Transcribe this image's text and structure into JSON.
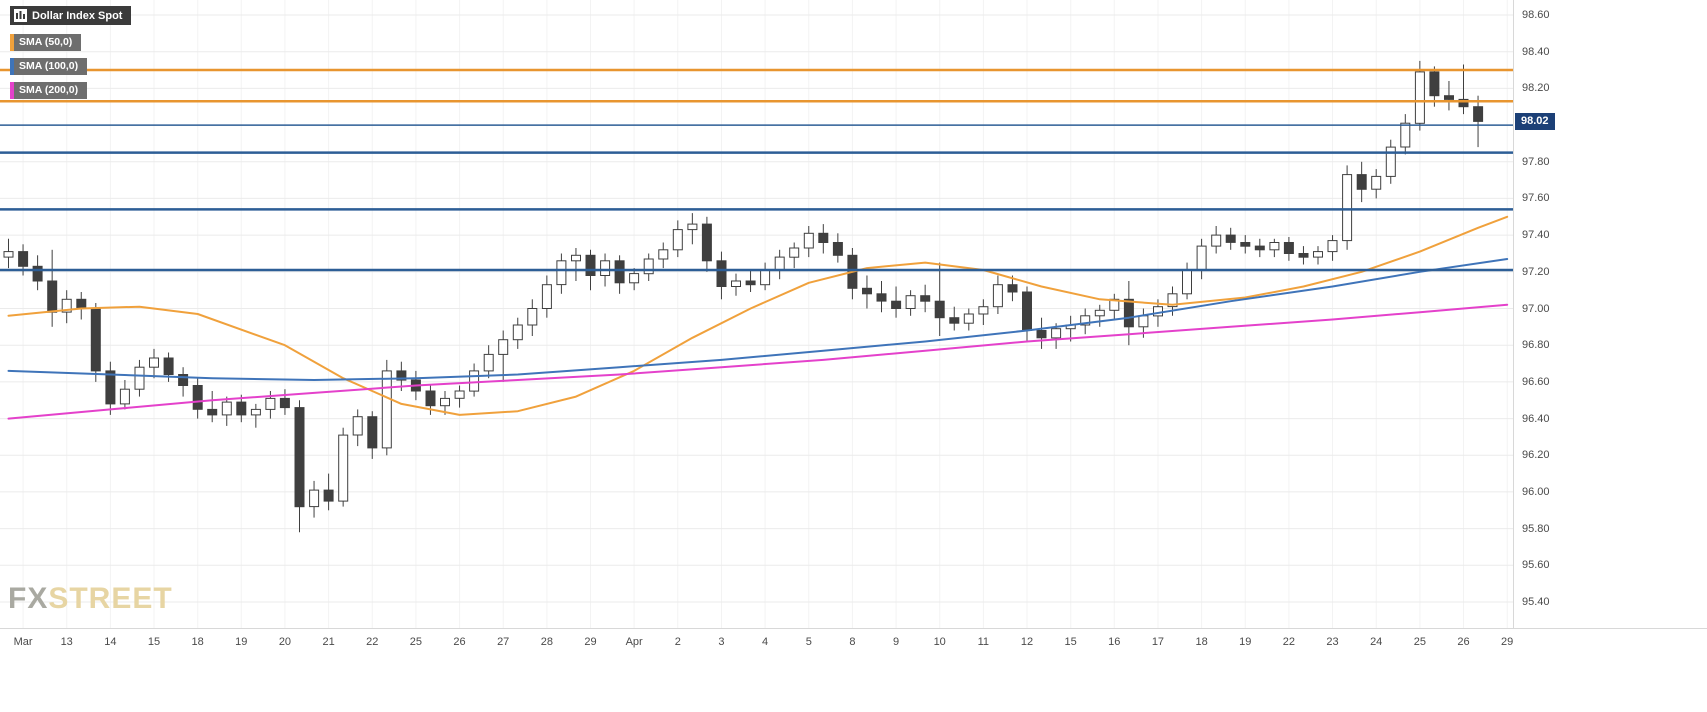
{
  "legend": {
    "symbol": "Dollar Index Spot",
    "indicators": [
      {
        "label": "SMA (50,0)",
        "color": "#f0a13c"
      },
      {
        "label": "SMA (100,0)",
        "color": "#3f74b9"
      },
      {
        "label": "SMA (200,0)",
        "color": "#e441cb"
      }
    ]
  },
  "watermark": {
    "fx": "FX",
    "street": "STREET"
  },
  "price_badge": {
    "value": "98.02",
    "color": "#1c4077"
  },
  "chart_data": {
    "type": "candlestick",
    "title": "Dollar Index Spot",
    "timeframe_hint": "intraday (3 candles per trading day), Mar 12 - Apr 29",
    "y_axis": {
      "min": 95.4,
      "max": 98.6,
      "step": 0.2
    },
    "y_ticks": [
      "98.60",
      "98.40",
      "98.20",
      "98.00",
      "97.80",
      "97.60",
      "97.40",
      "97.20",
      "97.00",
      "96.80",
      "96.60",
      "96.40",
      "96.20",
      "96.00",
      "95.80",
      "95.60",
      "95.40"
    ],
    "x_labels": [
      "Mar",
      "13",
      "14",
      "15",
      "18",
      "19",
      "20",
      "21",
      "22",
      "25",
      "26",
      "27",
      "28",
      "29",
      "Apr",
      "2",
      "3",
      "4",
      "5",
      "8",
      "9",
      "10",
      "11",
      "12",
      "15",
      "16",
      "17",
      "18",
      "19",
      "22",
      "23",
      "24",
      "25",
      "26",
      "29"
    ],
    "last_price": 98.02,
    "candles": [
      [
        97.28,
        97.38,
        97.22,
        97.31
      ],
      [
        97.31,
        97.35,
        97.18,
        97.23
      ],
      [
        97.23,
        97.29,
        97.1,
        97.15
      ],
      [
        97.15,
        97.32,
        96.9,
        96.98
      ],
      [
        96.98,
        97.1,
        96.92,
        97.05
      ],
      [
        97.05,
        97.09,
        96.94,
        97.0
      ],
      [
        97.0,
        97.03,
        96.6,
        96.66
      ],
      [
        96.66,
        96.71,
        96.42,
        96.48
      ],
      [
        96.48,
        96.61,
        96.45,
        96.56
      ],
      [
        96.56,
        96.72,
        96.52,
        96.68
      ],
      [
        96.68,
        96.78,
        96.62,
        96.73
      ],
      [
        96.73,
        96.76,
        96.6,
        96.64
      ],
      [
        96.64,
        96.68,
        96.52,
        96.58
      ],
      [
        96.58,
        96.62,
        96.4,
        96.45
      ],
      [
        96.45,
        96.55,
        96.38,
        96.42
      ],
      [
        96.42,
        96.52,
        96.36,
        96.49
      ],
      [
        96.49,
        96.53,
        96.38,
        96.42
      ],
      [
        96.42,
        96.48,
        96.35,
        96.45
      ],
      [
        96.45,
        96.55,
        96.4,
        96.51
      ],
      [
        96.51,
        96.56,
        96.42,
        96.46
      ],
      [
        96.46,
        96.5,
        95.78,
        95.92
      ],
      [
        95.92,
        96.06,
        95.86,
        96.01
      ],
      [
        96.01,
        96.1,
        95.9,
        95.95
      ],
      [
        95.95,
        96.35,
        95.92,
        96.31
      ],
      [
        96.31,
        96.45,
        96.25,
        96.41
      ],
      [
        96.41,
        96.44,
        96.18,
        96.24
      ],
      [
        96.24,
        96.72,
        96.2,
        96.66
      ],
      [
        96.66,
        96.71,
        96.55,
        96.61
      ],
      [
        96.61,
        96.66,
        96.5,
        96.55
      ],
      [
        96.55,
        96.58,
        96.42,
        96.47
      ],
      [
        96.47,
        96.55,
        96.42,
        96.51
      ],
      [
        96.51,
        96.58,
        96.46,
        96.55
      ],
      [
        96.55,
        96.7,
        96.52,
        96.66
      ],
      [
        96.66,
        96.8,
        96.62,
        96.75
      ],
      [
        96.75,
        96.88,
        96.6,
        96.83
      ],
      [
        96.83,
        96.95,
        96.78,
        96.91
      ],
      [
        96.91,
        97.05,
        96.85,
        97.0
      ],
      [
        97.0,
        97.18,
        96.95,
        97.13
      ],
      [
        97.13,
        97.3,
        97.08,
        97.26
      ],
      [
        97.26,
        97.33,
        97.15,
        97.29
      ],
      [
        97.29,
        97.32,
        97.1,
        97.18
      ],
      [
        97.18,
        97.3,
        97.12,
        97.26
      ],
      [
        97.26,
        97.29,
        97.08,
        97.14
      ],
      [
        97.14,
        97.22,
        97.1,
        97.19
      ],
      [
        97.19,
        97.3,
        97.15,
        97.27
      ],
      [
        97.27,
        97.36,
        97.22,
        97.32
      ],
      [
        97.32,
        97.48,
        97.28,
        97.43
      ],
      [
        97.43,
        97.52,
        97.35,
        97.46
      ],
      [
        97.46,
        97.5,
        97.2,
        97.26
      ],
      [
        97.26,
        97.31,
        97.05,
        97.12
      ],
      [
        97.12,
        97.19,
        97.07,
        97.15
      ],
      [
        97.15,
        97.21,
        97.09,
        97.13
      ],
      [
        97.13,
        97.25,
        97.1,
        97.21
      ],
      [
        97.21,
        97.32,
        97.16,
        97.28
      ],
      [
        97.28,
        97.36,
        97.22,
        97.33
      ],
      [
        97.33,
        97.45,
        97.28,
        97.41
      ],
      [
        97.41,
        97.46,
        97.3,
        97.36
      ],
      [
        97.36,
        97.41,
        97.25,
        97.29
      ],
      [
        97.29,
        97.33,
        97.05,
        97.11
      ],
      [
        97.11,
        97.18,
        97.0,
        97.08
      ],
      [
        97.08,
        97.15,
        96.98,
        97.04
      ],
      [
        97.04,
        97.12,
        96.95,
        97.0
      ],
      [
        97.0,
        97.1,
        96.96,
        97.07
      ],
      [
        97.07,
        97.13,
        96.98,
        97.04
      ],
      [
        97.04,
        97.25,
        96.85,
        96.95
      ],
      [
        96.95,
        97.01,
        96.88,
        96.92
      ],
      [
        96.92,
        97.0,
        96.88,
        96.97
      ],
      [
        96.97,
        97.05,
        96.91,
        97.01
      ],
      [
        97.01,
        97.18,
        96.97,
        97.13
      ],
      [
        97.13,
        97.18,
        97.04,
        97.09
      ],
      [
        97.09,
        97.12,
        96.82,
        96.88
      ],
      [
        96.88,
        96.95,
        96.78,
        96.84
      ],
      [
        96.84,
        96.92,
        96.78,
        96.89
      ],
      [
        96.89,
        96.96,
        96.82,
        96.91
      ],
      [
        96.91,
        97.0,
        96.86,
        96.96
      ],
      [
        96.96,
        97.02,
        96.9,
        96.99
      ],
      [
        96.99,
        97.08,
        96.94,
        97.05
      ],
      [
        97.05,
        97.15,
        96.8,
        96.9
      ],
      [
        96.9,
        97.0,
        96.84,
        96.96
      ],
      [
        96.96,
        97.05,
        96.9,
        97.01
      ],
      [
        97.01,
        97.12,
        96.96,
        97.08
      ],
      [
        97.08,
        97.25,
        97.05,
        97.21
      ],
      [
        97.21,
        97.38,
        97.16,
        97.34
      ],
      [
        97.34,
        97.45,
        97.3,
        97.4
      ],
      [
        97.4,
        97.44,
        97.32,
        97.36
      ],
      [
        97.36,
        97.4,
        97.3,
        97.34
      ],
      [
        97.34,
        97.38,
        97.28,
        97.32
      ],
      [
        97.32,
        97.38,
        97.28,
        97.36
      ],
      [
        97.36,
        97.39,
        97.26,
        97.3
      ],
      [
        97.3,
        97.34,
        97.24,
        97.28
      ],
      [
        97.28,
        97.34,
        97.24,
        97.31
      ],
      [
        97.31,
        97.4,
        97.26,
        97.37
      ],
      [
        97.37,
        97.78,
        97.32,
        97.73
      ],
      [
        97.73,
        97.8,
        97.58,
        97.65
      ],
      [
        97.65,
        97.76,
        97.6,
        97.72
      ],
      [
        97.72,
        97.92,
        97.68,
        97.88
      ],
      [
        97.88,
        98.06,
        97.84,
        98.01
      ],
      [
        98.01,
        98.35,
        97.97,
        98.29
      ],
      [
        98.29,
        98.32,
        98.1,
        98.16
      ],
      [
        98.16,
        98.24,
        98.08,
        98.14
      ],
      [
        98.14,
        98.33,
        98.06,
        98.1
      ],
      [
        98.1,
        98.16,
        97.88,
        98.02
      ]
    ],
    "levels": [
      {
        "name": "resistance-upper",
        "value": 98.3,
        "color": "#e8952f",
        "width": 2.5
      },
      {
        "name": "resistance-lower",
        "value": 98.13,
        "color": "#e8952f",
        "width": 2.5
      },
      {
        "name": "level-98.00",
        "value": 98.0,
        "color": "#2d5e96",
        "width": 1.5
      },
      {
        "name": "level-97.85",
        "value": 97.85,
        "color": "#2d5e96",
        "width": 2.5
      },
      {
        "name": "level-97.54",
        "value": 97.54,
        "color": "#2d5e96",
        "width": 2.5
      },
      {
        "name": "level-97.21",
        "value": 97.21,
        "color": "#2d5e96",
        "width": 2.5
      }
    ],
    "sma": [
      {
        "name": "SMA 50",
        "color": "#f0a13c",
        "points": [
          [
            0,
            96.96
          ],
          [
            5,
            97.0
          ],
          [
            9,
            97.01
          ],
          [
            13,
            96.97
          ],
          [
            19,
            96.8
          ],
          [
            23,
            96.62
          ],
          [
            27,
            96.48
          ],
          [
            31,
            96.42
          ],
          [
            35,
            96.44
          ],
          [
            39,
            96.52
          ],
          [
            43,
            96.66
          ],
          [
            47,
            96.84
          ],
          [
            51,
            97.0
          ],
          [
            55,
            97.14
          ],
          [
            59,
            97.22
          ],
          [
            63,
            97.25
          ],
          [
            67,
            97.21
          ],
          [
            71,
            97.12
          ],
          [
            75,
            97.05
          ],
          [
            80,
            97.02
          ],
          [
            85,
            97.06
          ],
          [
            89,
            97.12
          ],
          [
            93,
            97.2
          ],
          [
            97,
            97.31
          ],
          [
            101,
            97.44
          ],
          [
            103,
            97.5
          ]
        ]
      },
      {
        "name": "SMA 100",
        "color": "#3f74b9",
        "points": [
          [
            0,
            96.66
          ],
          [
            7,
            96.64
          ],
          [
            14,
            96.62
          ],
          [
            21,
            96.61
          ],
          [
            28,
            96.62
          ],
          [
            35,
            96.64
          ],
          [
            42,
            96.68
          ],
          [
            49,
            96.72
          ],
          [
            56,
            96.77
          ],
          [
            63,
            96.82
          ],
          [
            70,
            96.88
          ],
          [
            77,
            96.95
          ],
          [
            84,
            97.04
          ],
          [
            91,
            97.12
          ],
          [
            97,
            97.2
          ],
          [
            103,
            97.27
          ]
        ]
      },
      {
        "name": "SMA 200",
        "color": "#e441cb",
        "points": [
          [
            0,
            96.4
          ],
          [
            7,
            96.45
          ],
          [
            14,
            96.5
          ],
          [
            21,
            96.54
          ],
          [
            28,
            96.58
          ],
          [
            35,
            96.61
          ],
          [
            42,
            96.64
          ],
          [
            49,
            96.68
          ],
          [
            56,
            96.72
          ],
          [
            63,
            96.77
          ],
          [
            70,
            96.82
          ],
          [
            77,
            96.86
          ],
          [
            84,
            96.9
          ],
          [
            91,
            96.94
          ],
          [
            97,
            96.98
          ],
          [
            103,
            97.02
          ]
        ]
      }
    ]
  }
}
